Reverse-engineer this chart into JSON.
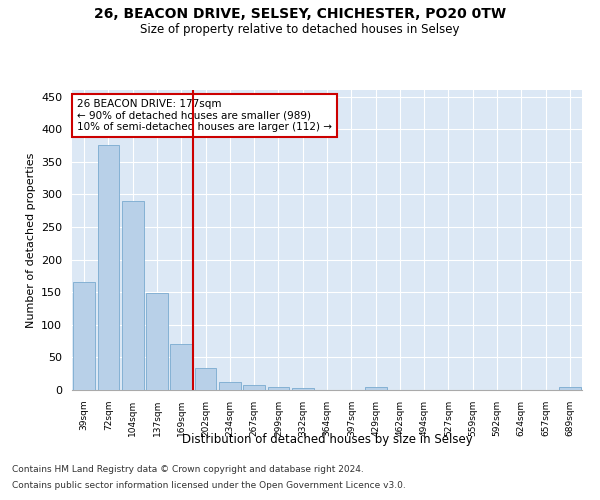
{
  "title1": "26, BEACON DRIVE, SELSEY, CHICHESTER, PO20 0TW",
  "title2": "Size of property relative to detached houses in Selsey",
  "xlabel": "Distribution of detached houses by size in Selsey",
  "ylabel": "Number of detached properties",
  "categories": [
    "39sqm",
    "72sqm",
    "104sqm",
    "137sqm",
    "169sqm",
    "202sqm",
    "234sqm",
    "267sqm",
    "299sqm",
    "332sqm",
    "364sqm",
    "397sqm",
    "429sqm",
    "462sqm",
    "494sqm",
    "527sqm",
    "559sqm",
    "592sqm",
    "624sqm",
    "657sqm",
    "689sqm"
  ],
  "values": [
    165,
    375,
    290,
    148,
    70,
    33,
    13,
    7,
    5,
    3,
    0,
    0,
    5,
    0,
    0,
    0,
    0,
    0,
    0,
    0,
    4
  ],
  "bar_color": "#b8d0e8",
  "bar_edge_color": "#7aaacf",
  "vline_color": "#cc0000",
  "vline_index": 4.5,
  "annotation_text": "26 BEACON DRIVE: 177sqm\n← 90% of detached houses are smaller (989)\n10% of semi-detached houses are larger (112) →",
  "annotation_box_color": "#cc0000",
  "ylim": [
    0,
    460
  ],
  "yticks": [
    0,
    50,
    100,
    150,
    200,
    250,
    300,
    350,
    400,
    450
  ],
  "bg_color": "#dce8f5",
  "footer1": "Contains HM Land Registry data © Crown copyright and database right 2024.",
  "footer2": "Contains public sector information licensed under the Open Government Licence v3.0."
}
